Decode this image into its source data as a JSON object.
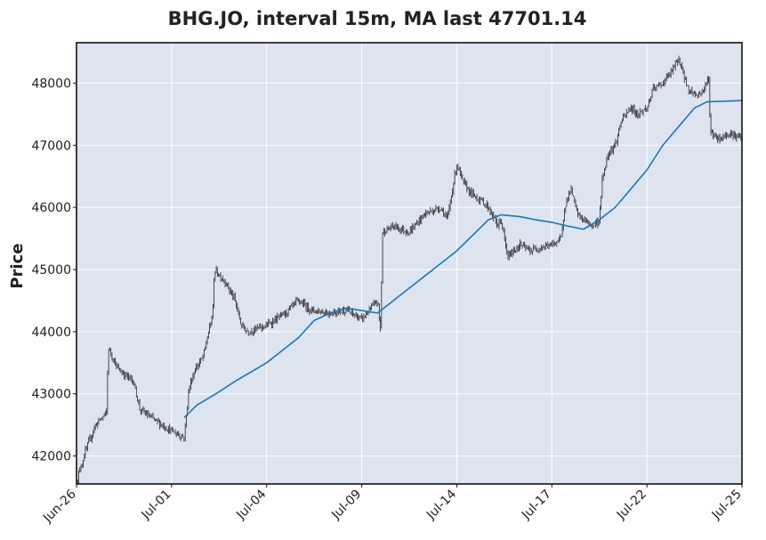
{
  "chart_data": {
    "type": "candlestick",
    "title": "BHG.JO, interval 15m, MA last 47701.14",
    "xlabel": "",
    "ylabel": "Price",
    "ylim": [
      41550,
      48650
    ],
    "yticks": [
      42000,
      43000,
      44000,
      45000,
      46000,
      47000,
      48000
    ],
    "xticks": [
      {
        "label": "Jun-26",
        "session": 0
      },
      {
        "label": "Jul-01",
        "session": 3
      },
      {
        "label": "Jul-04",
        "session": 6
      },
      {
        "label": "Jul-09",
        "session": 9
      },
      {
        "label": "Jul-14",
        "session": 12
      },
      {
        "label": "Jul-17",
        "session": 15
      },
      {
        "label": "Jul-22",
        "session": 18
      },
      {
        "label": "Jul-25",
        "session": 21
      }
    ],
    "grid": true,
    "background": "#dde3ef",
    "candle_color": "#222222",
    "ma_color": "#1f77b4",
    "price_path": [
      [
        0.0,
        41600
      ],
      [
        0.3,
        42100
      ],
      [
        0.6,
        42500
      ],
      [
        0.95,
        42700
      ],
      [
        1.0,
        43750
      ],
      [
        1.3,
        43400
      ],
      [
        1.55,
        43300
      ],
      [
        1.8,
        43200
      ],
      [
        2.0,
        42750
      ],
      [
        2.4,
        42600
      ],
      [
        2.7,
        42500
      ],
      [
        3.0,
        42400
      ],
      [
        3.4,
        42300
      ],
      [
        3.55,
        43100
      ],
      [
        3.75,
        43400
      ],
      [
        4.0,
        43600
      ],
      [
        4.3,
        44300
      ],
      [
        4.35,
        45000
      ],
      [
        4.7,
        44800
      ],
      [
        5.0,
        44500
      ],
      [
        5.2,
        44100
      ],
      [
        5.4,
        44000
      ],
      [
        6.0,
        44100
      ],
      [
        6.6,
        44300
      ],
      [
        7.0,
        44500
      ],
      [
        7.4,
        44350
      ],
      [
        8.0,
        44300
      ],
      [
        8.5,
        44350
      ],
      [
        9.0,
        44200
      ],
      [
        9.5,
        44500
      ],
      [
        9.6,
        44000
      ],
      [
        9.65,
        45600
      ],
      [
        10.0,
        45700
      ],
      [
        10.5,
        45600
      ],
      [
        11.0,
        45900
      ],
      [
        11.5,
        46000
      ],
      [
        11.7,
        45800
      ],
      [
        12.0,
        46700
      ],
      [
        12.2,
        46400
      ],
      [
        12.5,
        46200
      ],
      [
        12.8,
        46100
      ],
      [
        13.0,
        46000
      ],
      [
        13.3,
        45700
      ],
      [
        13.4,
        45800
      ],
      [
        13.6,
        45200
      ],
      [
        14.0,
        45400
      ],
      [
        14.3,
        45300
      ],
      [
        14.6,
        45350
      ],
      [
        15.0,
        45400
      ],
      [
        15.3,
        45500
      ],
      [
        15.4,
        46000
      ],
      [
        15.6,
        46300
      ],
      [
        15.8,
        45900
      ],
      [
        16.0,
        45800
      ],
      [
        16.3,
        45700
      ],
      [
        16.5,
        45800
      ],
      [
        16.6,
        46500
      ],
      [
        16.8,
        46900
      ],
      [
        17.0,
        47000
      ],
      [
        17.2,
        47400
      ],
      [
        17.5,
        47600
      ],
      [
        17.7,
        47500
      ],
      [
        18.0,
        47600
      ],
      [
        18.2,
        47900
      ],
      [
        18.5,
        48000
      ],
      [
        18.8,
        48200
      ],
      [
        19.0,
        48400
      ],
      [
        19.3,
        47900
      ],
      [
        19.6,
        47800
      ],
      [
        19.8,
        47900
      ],
      [
        19.95,
        48100
      ],
      [
        20.0,
        47200
      ],
      [
        20.3,
        47100
      ],
      [
        20.6,
        47200
      ],
      [
        20.8,
        47150
      ],
      [
        21.0,
        47100
      ]
    ],
    "ma_path": [
      [
        3.4,
        42620
      ],
      [
        3.8,
        42820
      ],
      [
        4.0,
        42880
      ],
      [
        4.4,
        43000
      ],
      [
        5.0,
        43200
      ],
      [
        6.0,
        43500
      ],
      [
        7.0,
        43900
      ],
      [
        7.5,
        44180
      ],
      [
        8.0,
        44300
      ],
      [
        8.5,
        44380
      ],
      [
        9.0,
        44340
      ],
      [
        9.5,
        44300
      ],
      [
        10.0,
        44500
      ],
      [
        10.5,
        44700
      ],
      [
        11.0,
        44900
      ],
      [
        11.5,
        45100
      ],
      [
        12.0,
        45300
      ],
      [
        12.5,
        45550
      ],
      [
        13.0,
        45800
      ],
      [
        13.4,
        45880
      ],
      [
        14.0,
        45850
      ],
      [
        14.5,
        45800
      ],
      [
        15.0,
        45760
      ],
      [
        15.5,
        45700
      ],
      [
        16.0,
        45650
      ],
      [
        16.5,
        45800
      ],
      [
        17.0,
        46000
      ],
      [
        17.5,
        46300
      ],
      [
        18.0,
        46600
      ],
      [
        18.5,
        47000
      ],
      [
        19.0,
        47300
      ],
      [
        19.5,
        47600
      ],
      [
        19.9,
        47700
      ],
      [
        20.5,
        47710
      ],
      [
        21.0,
        47720
      ]
    ]
  }
}
